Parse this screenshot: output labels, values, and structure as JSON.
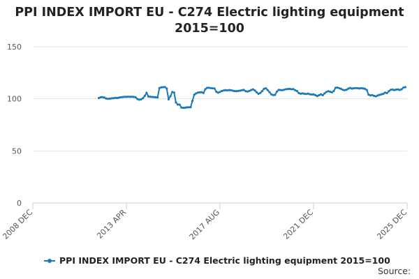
{
  "chart_data": {
    "type": "line",
    "title": "PPI INDEX IMPORT EU - C274 Electric lighting equipment",
    "subtitle": "2015=100",
    "xlabel": "",
    "ylabel": "",
    "ylim": [
      0,
      150
    ],
    "yticks": [
      0,
      50,
      100,
      150
    ],
    "x_range": [
      "2008-12",
      "2025-12"
    ],
    "x_tick_labels": [
      "2008 DEC",
      "2013 APR",
      "2017 AUG",
      "2021 DEC",
      "2025 DEC"
    ],
    "grid": "horizontal",
    "legend_position": "bottom",
    "color": "#1a7ab8",
    "series": [
      {
        "name": "PPI INDEX IMPORT EU - C274 Electric lighting equipment 2015=100",
        "points": [
          [
            "2011-12",
            100.8
          ],
          [
            "2012-01",
            101.5
          ],
          [
            "2012-02",
            101.6
          ],
          [
            "2012-03",
            101.2
          ],
          [
            "2012-04",
            100.3
          ],
          [
            "2012-05",
            100.0
          ],
          [
            "2012-06",
            100.2
          ],
          [
            "2012-07",
            100.5
          ],
          [
            "2012-08",
            100.6
          ],
          [
            "2012-09",
            100.9
          ],
          [
            "2012-10",
            100.8
          ],
          [
            "2012-11",
            101.2
          ],
          [
            "2012-12",
            101.5
          ],
          [
            "2013-01",
            101.7
          ],
          [
            "2013-02",
            101.9
          ],
          [
            "2013-03",
            101.9
          ],
          [
            "2013-04",
            102.0
          ],
          [
            "2013-05",
            101.9
          ],
          [
            "2013-06",
            102.0
          ],
          [
            "2013-07",
            101.8
          ],
          [
            "2013-08",
            101.5
          ],
          [
            "2013-09",
            99.8
          ],
          [
            "2013-10",
            99.2
          ],
          [
            "2013-11",
            99.5
          ],
          [
            "2013-12",
            100.6
          ],
          [
            "2014-01",
            102.7
          ],
          [
            "2014-02",
            105.8
          ],
          [
            "2014-03",
            102.2
          ],
          [
            "2014-04",
            102.0
          ],
          [
            "2014-05",
            101.8
          ],
          [
            "2014-06",
            101.6
          ],
          [
            "2014-07",
            101.5
          ],
          [
            "2014-08",
            101.4
          ],
          [
            "2014-09",
            110.3
          ],
          [
            "2014-10",
            111.0
          ],
          [
            "2014-11",
            111.2
          ],
          [
            "2014-12",
            111.3
          ],
          [
            "2015-01",
            109.8
          ],
          [
            "2015-02",
            99.5
          ],
          [
            "2015-03",
            102.5
          ],
          [
            "2015-04",
            106.5
          ],
          [
            "2015-05",
            106.0
          ],
          [
            "2015-06",
            96.5
          ],
          [
            "2015-07",
            94.5
          ],
          [
            "2015-08",
            94.4
          ],
          [
            "2015-09",
            91.6
          ],
          [
            "2015-10",
            91.3
          ],
          [
            "2015-11",
            91.5
          ],
          [
            "2015-12",
            91.8
          ],
          [
            "2016-01",
            91.8
          ],
          [
            "2016-02",
            92.0
          ],
          [
            "2016-03",
            98.0
          ],
          [
            "2016-04",
            104.0
          ],
          [
            "2016-05",
            105.2
          ],
          [
            "2016-06",
            106.0
          ],
          [
            "2016-07",
            106.2
          ],
          [
            "2016-08",
            106.3
          ],
          [
            "2016-09",
            105.6
          ],
          [
            "2016-10",
            109.2
          ],
          [
            "2016-11",
            110.5
          ],
          [
            "2016-12",
            110.6
          ],
          [
            "2017-01",
            110.3
          ],
          [
            "2017-02",
            110.1
          ],
          [
            "2017-03",
            109.9
          ],
          [
            "2017-04",
            106.8
          ],
          [
            "2017-05",
            105.9
          ],
          [
            "2017-06",
            106.6
          ],
          [
            "2017-07",
            107.5
          ],
          [
            "2017-08",
            108.0
          ],
          [
            "2017-09",
            108.3
          ],
          [
            "2017-10",
            108.1
          ],
          [
            "2017-11",
            108.4
          ],
          [
            "2017-12",
            108.2
          ],
          [
            "2018-01",
            107.8
          ],
          [
            "2018-02",
            107.4
          ],
          [
            "2018-03",
            107.3
          ],
          [
            "2018-04",
            107.6
          ],
          [
            "2018-05",
            107.8
          ],
          [
            "2018-06",
            108.3
          ],
          [
            "2018-07",
            108.5
          ],
          [
            "2018-08",
            107.3
          ],
          [
            "2018-09",
            107.0
          ],
          [
            "2018-10",
            107.6
          ],
          [
            "2018-11",
            108.4
          ],
          [
            "2018-12",
            109.1
          ],
          [
            "2019-01",
            108.0
          ],
          [
            "2019-02",
            106.2
          ],
          [
            "2019-03",
            104.8
          ],
          [
            "2019-04",
            105.6
          ],
          [
            "2019-05",
            107.4
          ],
          [
            "2019-06",
            109.6
          ],
          [
            "2019-07",
            110.1
          ],
          [
            "2019-08",
            108.4
          ],
          [
            "2019-09",
            106.4
          ],
          [
            "2019-10",
            104.3
          ],
          [
            "2019-11",
            103.6
          ],
          [
            "2019-12",
            103.8
          ],
          [
            "2020-01",
            106.9
          ],
          [
            "2020-02",
            108.6
          ],
          [
            "2020-03",
            108.4
          ],
          [
            "2020-04",
            108.3
          ],
          [
            "2020-05",
            108.7
          ],
          [
            "2020-06",
            109.2
          ],
          [
            "2020-07",
            109.4
          ],
          [
            "2020-08",
            109.5
          ],
          [
            "2020-09",
            109.2
          ],
          [
            "2020-10",
            109.3
          ],
          [
            "2020-11",
            108.2
          ],
          [
            "2020-12",
            107.4
          ],
          [
            "2021-01",
            105.5
          ],
          [
            "2021-02",
            104.9
          ],
          [
            "2021-03",
            105.2
          ],
          [
            "2021-04",
            104.9
          ],
          [
            "2021-05",
            104.6
          ],
          [
            "2021-06",
            105.0
          ],
          [
            "2021-07",
            104.4
          ],
          [
            "2021-08",
            104.1
          ],
          [
            "2021-09",
            104.3
          ],
          [
            "2021-10",
            103.5
          ],
          [
            "2021-11",
            102.6
          ],
          [
            "2021-12",
            103.5
          ],
          [
            "2022-01",
            104.3
          ],
          [
            "2022-02",
            103.5
          ],
          [
            "2022-03",
            105.2
          ],
          [
            "2022-04",
            106.6
          ],
          [
            "2022-05",
            107.3
          ],
          [
            "2022-06",
            106.8
          ],
          [
            "2022-07",
            106.2
          ],
          [
            "2022-08",
            107.4
          ],
          [
            "2022-09",
            110.6
          ],
          [
            "2022-10",
            110.8
          ],
          [
            "2022-11",
            110.2
          ],
          [
            "2022-12",
            109.6
          ],
          [
            "2023-01",
            108.6
          ],
          [
            "2023-02",
            108.3
          ],
          [
            "2023-03",
            108.7
          ],
          [
            "2023-04",
            109.8
          ],
          [
            "2023-05",
            110.4
          ],
          [
            "2023-06",
            109.8
          ],
          [
            "2023-07",
            110.1
          ],
          [
            "2023-08",
            110.3
          ],
          [
            "2023-09",
            110.2
          ],
          [
            "2023-10",
            109.9
          ],
          [
            "2023-11",
            110.2
          ],
          [
            "2023-12",
            110.0
          ],
          [
            "2024-01",
            109.6
          ],
          [
            "2024-02",
            108.5
          ],
          [
            "2024-03",
            104.0
          ],
          [
            "2024-04",
            103.3
          ],
          [
            "2024-05",
            103.6
          ],
          [
            "2024-06",
            102.8
          ],
          [
            "2024-07",
            102.4
          ],
          [
            "2024-08",
            103.2
          ],
          [
            "2024-09",
            103.8
          ],
          [
            "2024-10",
            104.3
          ],
          [
            "2024-11",
            104.8
          ],
          [
            "2024-12",
            106.0
          ],
          [
            "2025-01",
            105.5
          ],
          [
            "2025-02",
            107.2
          ],
          [
            "2025-03",
            108.6
          ],
          [
            "2025-04",
            108.9
          ],
          [
            "2025-05",
            108.4
          ],
          [
            "2025-06",
            108.8
          ],
          [
            "2025-07",
            109.0
          ],
          [
            "2025-08",
            108.5
          ],
          [
            "2025-09",
            109.2
          ],
          [
            "2025-10",
            110.8
          ],
          [
            "2025-11",
            111.2
          ]
        ]
      }
    ]
  },
  "source_label": "Source:"
}
